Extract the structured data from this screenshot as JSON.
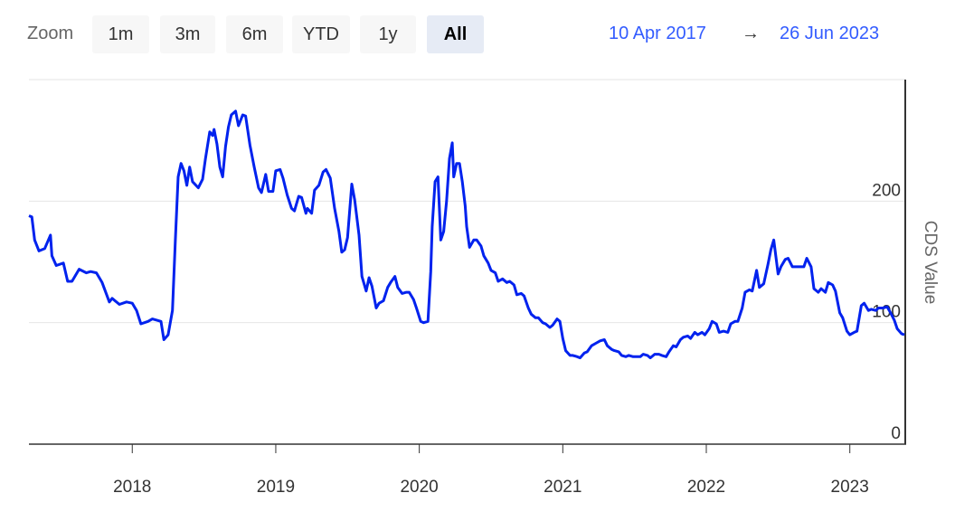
{
  "range_selector": {
    "label": "Zoom",
    "buttons": [
      "1m",
      "3m",
      "6m",
      "YTD",
      "1y",
      "All"
    ],
    "selected": 5,
    "from": "10 Apr 2017",
    "arrow": "→",
    "to": "26 Jun 2023"
  },
  "chart_data": {
    "type": "line",
    "y_axis_label": "CDS Value",
    "color": "#0022ee",
    "grid": true,
    "xlim": [
      2017.28,
      2023.38
    ],
    "xticks": [
      2018,
      2019,
      2020,
      2021,
      2022,
      2023
    ],
    "ylim": [
      0,
      300
    ],
    "yticks": [
      0,
      100,
      200
    ],
    "x": [
      2017.28,
      2017.3,
      2017.32,
      2017.35,
      2017.39,
      2017.43,
      2017.44,
      2017.47,
      2017.52,
      2017.55,
      2017.58,
      2017.63,
      2017.68,
      2017.71,
      2017.75,
      2017.79,
      2017.84,
      2017.86,
      2017.91,
      2017.96,
      2018.0,
      2018.03,
      2018.06,
      2018.11,
      2018.14,
      2018.2,
      2018.22,
      2018.25,
      2018.28,
      2018.3,
      2018.32,
      2018.34,
      2018.36,
      2018.38,
      2018.4,
      2018.42,
      2018.46,
      2018.49,
      2018.51,
      2018.54,
      2018.56,
      2018.57,
      2018.59,
      2018.61,
      2018.63,
      2018.65,
      2018.67,
      2018.69,
      2018.72,
      2018.74,
      2018.77,
      2018.79,
      2018.82,
      2018.85,
      2018.88,
      2018.9,
      2018.93,
      2018.95,
      2018.98,
      2019.0,
      2019.03,
      2019.05,
      2019.08,
      2019.11,
      2019.13,
      2019.16,
      2019.18,
      2019.21,
      2019.22,
      2019.25,
      2019.27,
      2019.3,
      2019.33,
      2019.35,
      2019.38,
      2019.41,
      2019.44,
      2019.46,
      2019.48,
      2019.5,
      2019.53,
      2019.55,
      2019.58,
      2019.6,
      2019.63,
      2019.65,
      2019.67,
      2019.7,
      2019.72,
      2019.75,
      2019.78,
      2019.8,
      2019.83,
      2019.85,
      2019.88,
      2019.91,
      2019.93,
      2019.96,
      2019.98,
      2020.01,
      2020.03,
      2020.06,
      2020.08,
      2020.09,
      2020.11,
      2020.13,
      2020.15,
      2020.17,
      2020.19,
      2020.21,
      2020.23,
      2020.24,
      2020.26,
      2020.28,
      2020.3,
      2020.32,
      2020.33,
      2020.35,
      2020.38,
      2020.4,
      2020.43,
      2020.45,
      2020.48,
      2020.5,
      2020.53,
      2020.55,
      2020.58,
      2020.61,
      2020.63,
      2020.66,
      2020.68,
      2020.71,
      2020.73,
      2020.76,
      2020.78,
      2020.81,
      2020.83,
      2020.86,
      2020.88,
      2020.91,
      2020.93,
      2020.96,
      2020.98,
      2021.0,
      2021.02,
      2021.05,
      2021.07,
      2021.1,
      2021.12,
      2021.15,
      2021.17,
      2021.2,
      2021.23,
      2021.26,
      2021.29,
      2021.31,
      2021.34,
      2021.36,
      2021.39,
      2021.41,
      2021.44,
      2021.46,
      2021.49,
      2021.51,
      2021.54,
      2021.56,
      2021.59,
      2021.61,
      2021.64,
      2021.67,
      2021.69,
      2021.72,
      2021.74,
      2021.77,
      2021.79,
      2021.82,
      2021.84,
      2021.87,
      2021.89,
      2021.92,
      2021.94,
      2021.97,
      2021.99,
      2022.02,
      2022.04,
      2022.07,
      2022.09,
      2022.12,
      2022.15,
      2022.17,
      2022.2,
      2022.22,
      2022.25,
      2022.27,
      2022.3,
      2022.32,
      2022.35,
      2022.37,
      2022.4,
      2022.43,
      2022.45,
      2022.47,
      2022.5,
      2022.52,
      2022.55,
      2022.57,
      2022.6,
      2022.62,
      2022.65,
      2022.68,
      2022.7,
      2022.73,
      2022.75,
      2022.78,
      2022.8,
      2022.83,
      2022.85,
      2022.88,
      2022.9,
      2022.93,
      2022.95,
      2022.98,
      2023.0,
      2023.03,
      2023.05,
      2023.08,
      2023.1,
      2023.13,
      2023.15,
      2023.18,
      2023.2,
      2023.23,
      2023.26,
      2023.28,
      2023.31,
      2023.33,
      2023.36,
      2023.38
    ],
    "values": [
      188,
      187,
      168,
      159,
      161,
      172,
      155,
      147,
      149,
      134,
      134,
      144,
      141,
      142,
      141,
      133,
      117,
      120,
      115,
      117,
      116,
      110,
      99,
      101,
      103,
      101,
      86,
      90,
      110,
      168,
      220,
      231,
      225,
      213,
      228,
      216,
      211,
      218,
      235,
      257,
      254,
      259,
      247,
      228,
      220,
      245,
      261,
      271,
      274,
      262,
      271,
      270,
      246,
      228,
      211,
      207,
      222,
      208,
      208,
      225,
      226,
      219,
      205,
      194,
      192,
      204,
      203,
      190,
      194,
      190,
      209,
      213,
      224,
      226,
      219,
      194,
      175,
      158,
      160,
      170,
      214,
      201,
      172,
      138,
      126,
      137,
      130,
      112,
      116,
      118,
      129,
      133,
      138,
      129,
      124,
      125,
      125,
      119,
      112,
      101,
      100,
      101,
      142,
      179,
      216,
      220,
      168,
      175,
      200,
      235,
      248,
      220,
      231,
      231,
      216,
      196,
      179,
      162,
      168,
      168,
      163,
      155,
      149,
      143,
      141,
      134,
      136,
      133,
      134,
      131,
      123,
      124,
      122,
      112,
      107,
      104,
      104,
      100,
      99,
      96,
      98,
      103,
      101,
      87,
      77,
      73,
      73,
      72,
      71,
      75,
      76,
      81,
      83,
      85,
      86,
      81,
      78,
      77,
      76,
      73,
      72,
      73,
      72,
      72,
      72,
      74,
      73,
      71,
      74,
      74,
      73,
      72,
      76,
      81,
      80,
      86,
      88,
      89,
      87,
      92,
      90,
      92,
      90,
      95,
      101,
      99,
      92,
      93,
      92,
      99,
      101,
      101,
      112,
      125,
      127,
      126,
      143,
      129,
      132,
      148,
      160,
      168,
      140,
      146,
      152,
      153,
      146,
      146,
      146,
      146,
      153,
      146,
      128,
      125,
      128,
      125,
      133,
      131,
      126,
      108,
      104,
      93,
      90,
      92,
      93,
      114,
      116,
      110,
      111,
      110,
      112,
      112,
      113,
      109,
      102,
      95,
      91,
      90
    ]
  }
}
